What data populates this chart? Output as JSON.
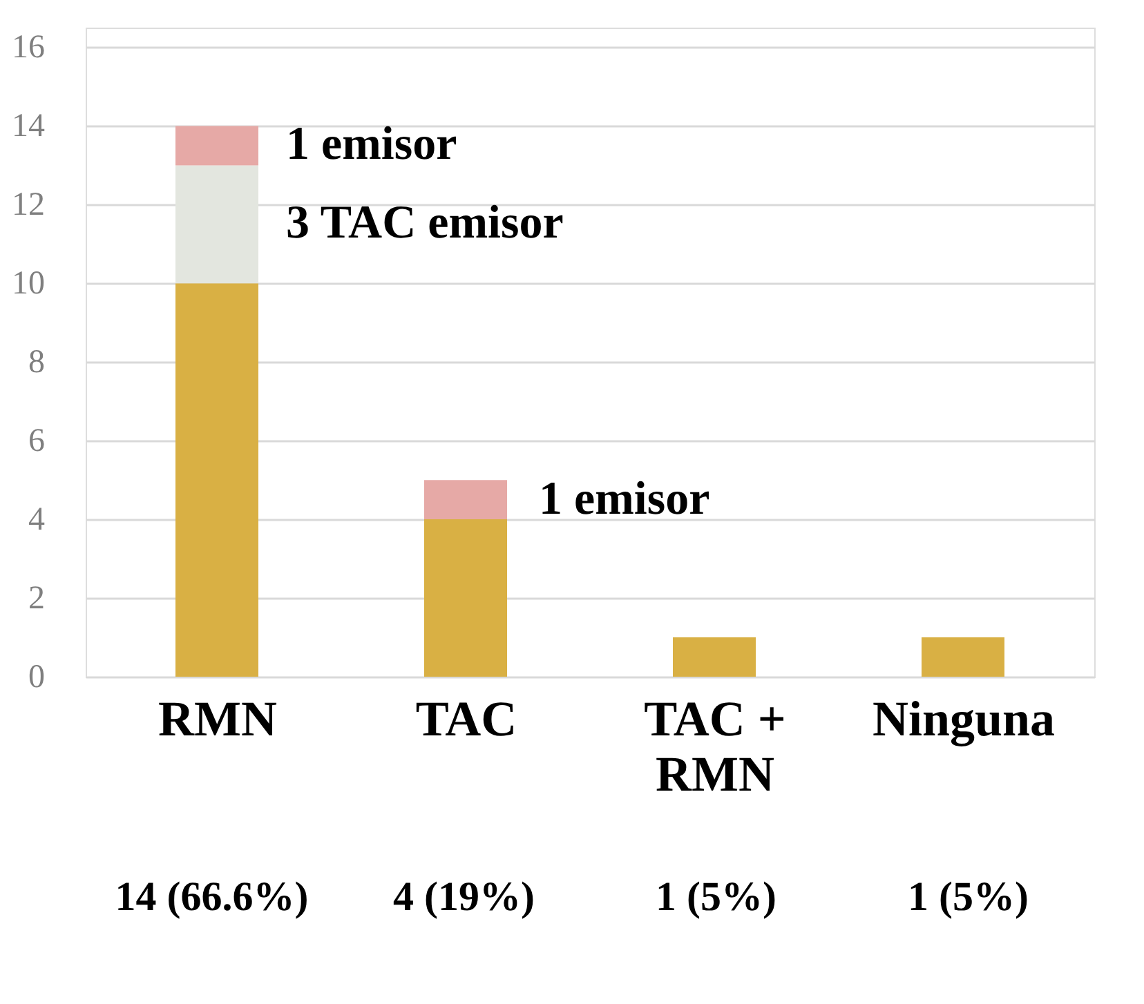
{
  "chart_data": {
    "type": "bar",
    "stacked": true,
    "categories": [
      "RMN",
      "TAC",
      "TAC + RMN",
      "Ninguna"
    ],
    "series": [
      {
        "color": "#d9b044",
        "values": [
          10,
          4,
          1,
          1
        ]
      },
      {
        "color": "#e3e6df",
        "values": [
          3,
          0,
          0,
          0
        ]
      },
      {
        "color": "#e6a9a6",
        "values": [
          1,
          1,
          0,
          0
        ]
      }
    ],
    "ylim": [
      0,
      16.5
    ],
    "yticks": [
      0,
      2,
      4,
      6,
      8,
      10,
      12,
      14,
      16
    ],
    "grid": "y",
    "annotations": [
      "1 emisor",
      "3 TAC emisor",
      "1 emisor",
      "14 (66.6%)",
      "4 (19%)",
      "1 (5%)",
      "1 (5%)"
    ]
  }
}
